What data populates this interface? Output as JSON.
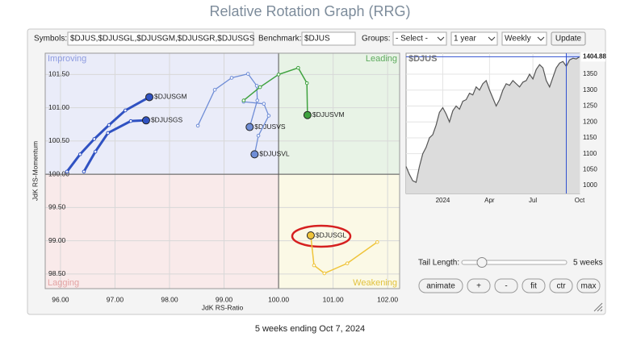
{
  "header": {
    "title": "Relative Rotation Graph (RRG)"
  },
  "controls": {
    "symbols_label": "Symbols:",
    "symbols": "$DJUS,$DJUSGL,$DJUSGM,$DJUSGR,$DJUSGS",
    "benchmark_label": "Benchmark:",
    "benchmark": "$DJUS",
    "groups_label": "Groups:",
    "groups": "- Select -",
    "period": "1 year",
    "frequency": "Weekly",
    "update": "Update"
  },
  "chart_data": [
    {
      "type": "rrg",
      "x_label": "JdK RS-Ratio",
      "y_label": "JdK RS-Momentum",
      "xlim": [
        95.72,
        102.22
      ],
      "ylim": [
        98.28,
        101.82
      ],
      "quadrant_center": [
        100,
        100
      ],
      "xticks": [
        {
          "value": 96,
          "label": "96.00"
        },
        {
          "value": 97,
          "label": "97.00"
        },
        {
          "value": 98,
          "label": "98.00"
        },
        {
          "value": 99,
          "label": "99.00"
        },
        {
          "value": 100,
          "label": "100.00"
        },
        {
          "value": 101,
          "label": "101.00"
        },
        {
          "value": 102,
          "label": "102.00"
        }
      ],
      "yticks": [
        {
          "value": 98.5,
          "label": "98.50"
        },
        {
          "value": 99,
          "label": "99.00"
        },
        {
          "value": 99.5,
          "label": "99.50"
        },
        {
          "value": 100,
          "label": "100.00"
        },
        {
          "value": 100.5,
          "label": "100.50"
        },
        {
          "value": 101,
          "label": "101.00"
        },
        {
          "value": 101.5,
          "label": "101.50"
        }
      ],
      "grid": true,
      "quadrants": [
        {
          "name": "Improving",
          "color": "#8d9be0",
          "fill": "#eaecf9"
        },
        {
          "name": "Leading",
          "color": "#5eab5e",
          "fill": "#e8f3e6"
        },
        {
          "name": "Lagging",
          "color": "#e3a3a3",
          "fill": "#f9eaea"
        },
        {
          "name": "Weakening",
          "color": "#e2c23e",
          "fill": "#fbf9e6"
        }
      ],
      "series": [
        {
          "name": "$DJUSGM",
          "color": "#3052c2",
          "width": 3,
          "x": [
            96.12,
            96.36,
            96.62,
            96.89,
            97.19,
            97.63
          ],
          "values": [
            100.04,
            100.3,
            100.53,
            100.74,
            100.96,
            101.16
          ]
        },
        {
          "name": "$DJUSGS",
          "color": "#3052c2",
          "width": 3,
          "x": [
            96.43,
            96.64,
            96.87,
            97.29,
            97.57
          ],
          "values": [
            100.04,
            100.34,
            100.62,
            100.8,
            100.81
          ]
        },
        {
          "name": "$DJUSVS",
          "color": "#6f8dd6",
          "width": 1.3,
          "x": [
            98.52,
            98.83,
            99.14,
            99.44,
            99.6,
            99.61,
            99.47
          ],
          "values": [
            100.73,
            101.27,
            101.45,
            101.51,
            101.33,
            101.11,
            100.71
          ]
        },
        {
          "name": "$DJUSVL",
          "color": "#6f8dd6",
          "width": 1.3,
          "x": [
            99.36,
            99.73,
            99.82,
            99.63,
            99.56
          ],
          "values": [
            101.09,
            101.06,
            100.88,
            100.58,
            100.3
          ]
        },
        {
          "name": "$DJUSVM",
          "color": "#3fa23f",
          "width": 1.5,
          "x": [
            99.36,
            99.66,
            100.0,
            100.36,
            100.52,
            100.53
          ],
          "values": [
            101.11,
            101.31,
            101.5,
            101.6,
            101.37,
            100.89
          ]
        },
        {
          "name": "$DJUSGL",
          "color": "#efc43a",
          "width": 1.5,
          "x": [
            101.81,
            101.26,
            100.84,
            100.65,
            100.59
          ],
          "values": [
            98.98,
            98.66,
            98.51,
            98.63,
            99.08
          ]
        }
      ]
    },
    {
      "type": "area",
      "title": "$DJUS",
      "color": "#555555",
      "fill": "#dcdcdc",
      "ylim": [
        975,
        1416
      ],
      "yticks": [
        1000,
        1050,
        1100,
        1150,
        1200,
        1250,
        1300,
        1350
      ],
      "grid": true,
      "categories": [
        null,
        null,
        null,
        null,
        null,
        null,
        null,
        null,
        null,
        null,
        null,
        "2024",
        null,
        null,
        null,
        null,
        null,
        null,
        null,
        null,
        null,
        null,
        null,
        null,
        null,
        "Apr",
        null,
        null,
        null,
        null,
        null,
        null,
        null,
        null,
        null,
        null,
        null,
        null,
        "Jul",
        null,
        null,
        null,
        null,
        null,
        null,
        null,
        null,
        null,
        null,
        null,
        null,
        null,
        "Oct"
      ],
      "values": [
        1060,
        1035,
        1015,
        1010,
        1060,
        1100,
        1120,
        1150,
        1160,
        1190,
        1230,
        1245,
        1225,
        1200,
        1235,
        1250,
        1240,
        1265,
        1270,
        1290,
        1285,
        1310,
        1300,
        1320,
        1330,
        1300,
        1275,
        1250,
        1270,
        1300,
        1320,
        1315,
        1330,
        1320,
        1310,
        1325,
        1330,
        1350,
        1335,
        1365,
        1380,
        1370,
        1330,
        1310,
        1340,
        1370,
        1385,
        1390,
        1375,
        1395,
        1400,
        1398,
        1404.88
      ]
    }
  ],
  "tail_controls": {
    "label": "Tail Length:",
    "value": "5 weeks",
    "buttons": [
      "animate",
      "+",
      "-",
      "fit",
      "ctr",
      "max"
    ]
  },
  "footer": {
    "text": "5 weeks ending Oct 7, 2024"
  }
}
